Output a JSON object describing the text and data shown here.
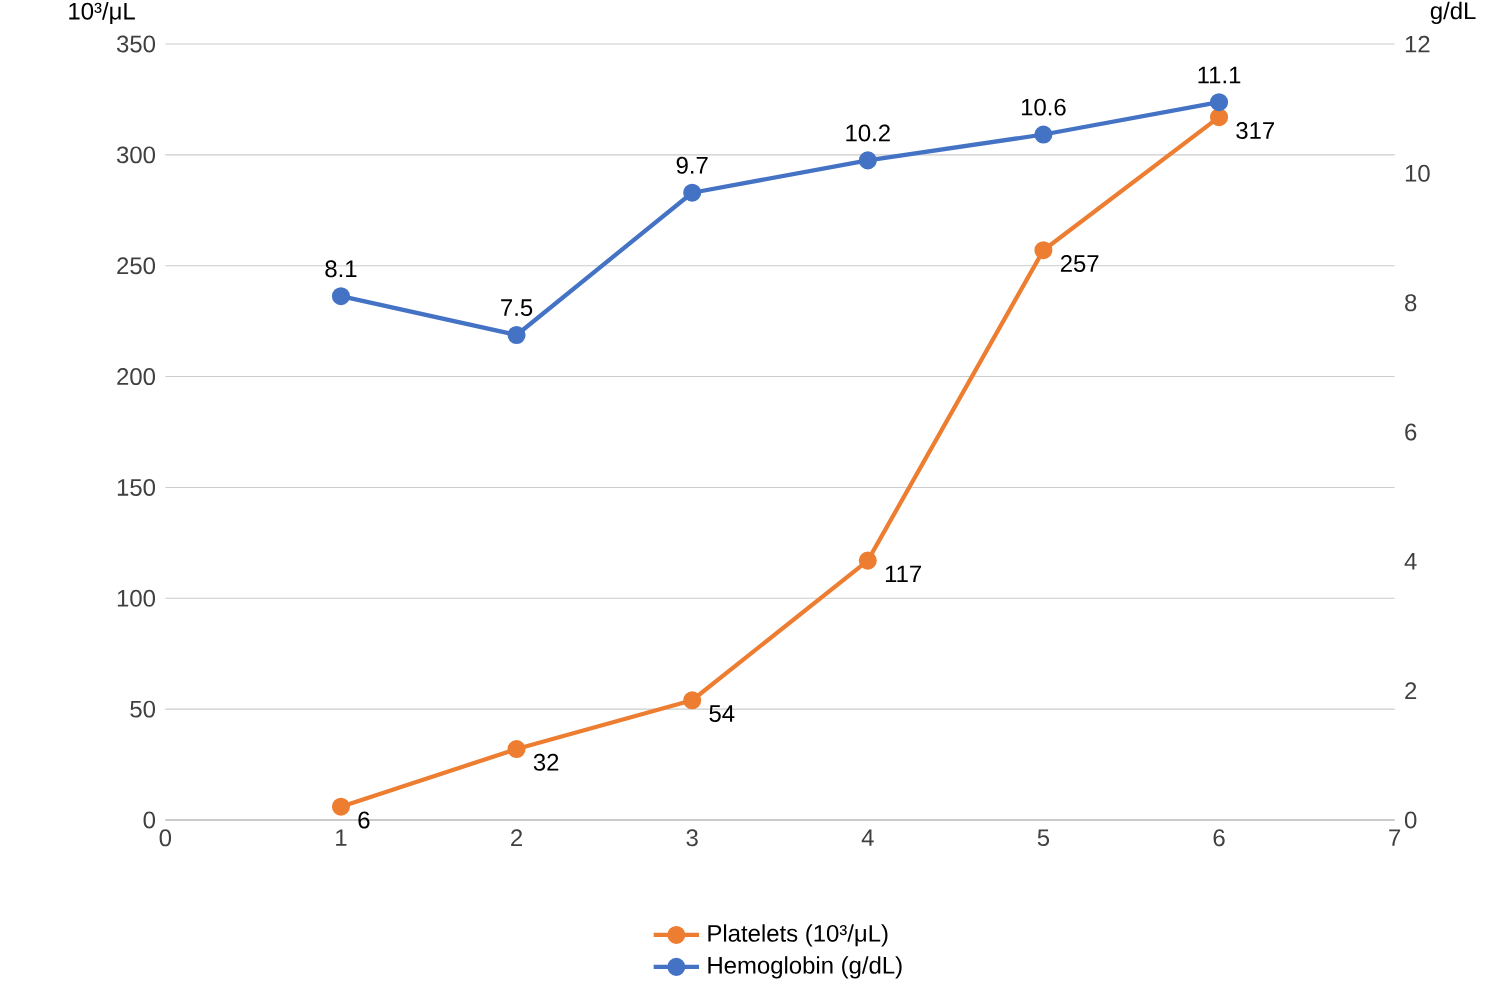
{
  "chart_data": {
    "type": "line",
    "ylabel": "10³/μL",
    "y2label": "g/dL",
    "x": [
      1,
      2,
      3,
      4,
      5,
      6
    ],
    "xlim": [
      0,
      7
    ],
    "xticks": [
      0,
      1,
      2,
      3,
      4,
      5,
      6,
      7
    ],
    "ylim": [
      0,
      350
    ],
    "yticks": [
      0,
      50,
      100,
      150,
      200,
      250,
      300,
      350
    ],
    "y2lim": [
      0,
      12
    ],
    "y2ticks": [
      0,
      2,
      4,
      6,
      8,
      10,
      12
    ],
    "series": [
      {
        "name": "Platelets (10³/μL)",
        "color": "#ed7d31",
        "values": [
          6,
          32,
          54,
          117,
          257,
          317
        ]
      },
      {
        "name": "Hemoglobin (g/dL)",
        "color": "#4472c4",
        "axis": "y2",
        "values": [
          8.1,
          7.5,
          9.7,
          10.2,
          10.6,
          11.1
        ]
      }
    ],
    "grid": "y",
    "legend": "bottom",
    "marker": "circle",
    "line_style": "solid",
    "data_labels": true
  }
}
